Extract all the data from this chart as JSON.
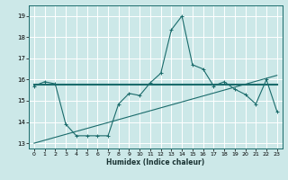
{
  "xlabel": "Humidex (Indice chaleur)",
  "ylabel": "",
  "xlim": [
    -0.5,
    23.5
  ],
  "ylim": [
    12.75,
    19.5
  ],
  "yticks": [
    13,
    14,
    15,
    16,
    17,
    18,
    19
  ],
  "xticks": [
    0,
    1,
    2,
    3,
    4,
    5,
    6,
    7,
    8,
    9,
    10,
    11,
    12,
    13,
    14,
    15,
    16,
    17,
    18,
    19,
    20,
    21,
    22,
    23
  ],
  "bg_color": "#cce8e8",
  "grid_color": "#ffffff",
  "line_color": "#1a6b6b",
  "line1_x": [
    0,
    1,
    2,
    3,
    4,
    5,
    6,
    7,
    8,
    9,
    10,
    11,
    12,
    13,
    14,
    15,
    16,
    17,
    18,
    19,
    20,
    21,
    22,
    23
  ],
  "line1_y": [
    15.7,
    15.9,
    15.8,
    13.9,
    13.35,
    13.35,
    13.35,
    13.35,
    14.85,
    15.35,
    15.25,
    15.85,
    16.3,
    18.35,
    19.0,
    16.7,
    16.5,
    15.7,
    15.9,
    15.55,
    15.3,
    14.85,
    16.0,
    14.5
  ],
  "line2_x": [
    0,
    23
  ],
  "line2_y": [
    15.75,
    15.75
  ],
  "line3_x": [
    0,
    23
  ],
  "line3_y": [
    13.0,
    16.2
  ]
}
